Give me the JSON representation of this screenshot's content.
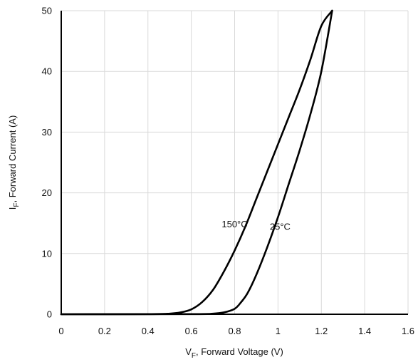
{
  "chart_data": {
    "type": "line",
    "xlabel": {
      "main": "V",
      "sub": "F",
      "rest": ", Forward Voltage (V)"
    },
    "ylabel": {
      "main": "I",
      "sub": "F",
      "rest": ", Forward Current (A)"
    },
    "xlim": [
      0,
      1.6
    ],
    "ylim": [
      0,
      50
    ],
    "x_ticks": [
      "0",
      "0.2",
      "0.4",
      "0.6",
      "0.8",
      "1",
      "1.2",
      "1.4",
      "1.6"
    ],
    "y_ticks": [
      "0",
      "10",
      "20",
      "30",
      "40",
      "50"
    ],
    "grid": true,
    "series": [
      {
        "name": "150°C",
        "x": [
          0,
          0.4,
          0.5,
          0.55,
          0.6,
          0.65,
          0.7,
          0.75,
          0.8,
          0.85,
          0.9,
          0.95,
          1.0,
          1.05,
          1.1,
          1.15,
          1.2,
          1.25
        ],
        "y": [
          0,
          0.02,
          0.1,
          0.3,
          0.8,
          2.0,
          4.0,
          7.0,
          10.5,
          14.5,
          19.0,
          23.5,
          28.0,
          32.5,
          37.0,
          42.0,
          47.5,
          50.0
        ]
      },
      {
        "name": "25°C",
        "x": [
          0,
          0.6,
          0.7,
          0.75,
          0.8,
          0.83,
          0.86,
          0.9,
          0.95,
          1.0,
          1.05,
          1.1,
          1.15,
          1.2,
          1.25
        ],
        "y": [
          0,
          0.02,
          0.1,
          0.3,
          0.9,
          2.0,
          3.5,
          6.5,
          11.0,
          16.0,
          21.5,
          27.0,
          33.0,
          40.0,
          50.0
        ]
      }
    ],
    "annotations": [
      {
        "text": "150°C",
        "x": 0.8,
        "y": 14.3
      },
      {
        "text": "25°C",
        "x": 1.01,
        "y": 13.9
      }
    ]
  }
}
